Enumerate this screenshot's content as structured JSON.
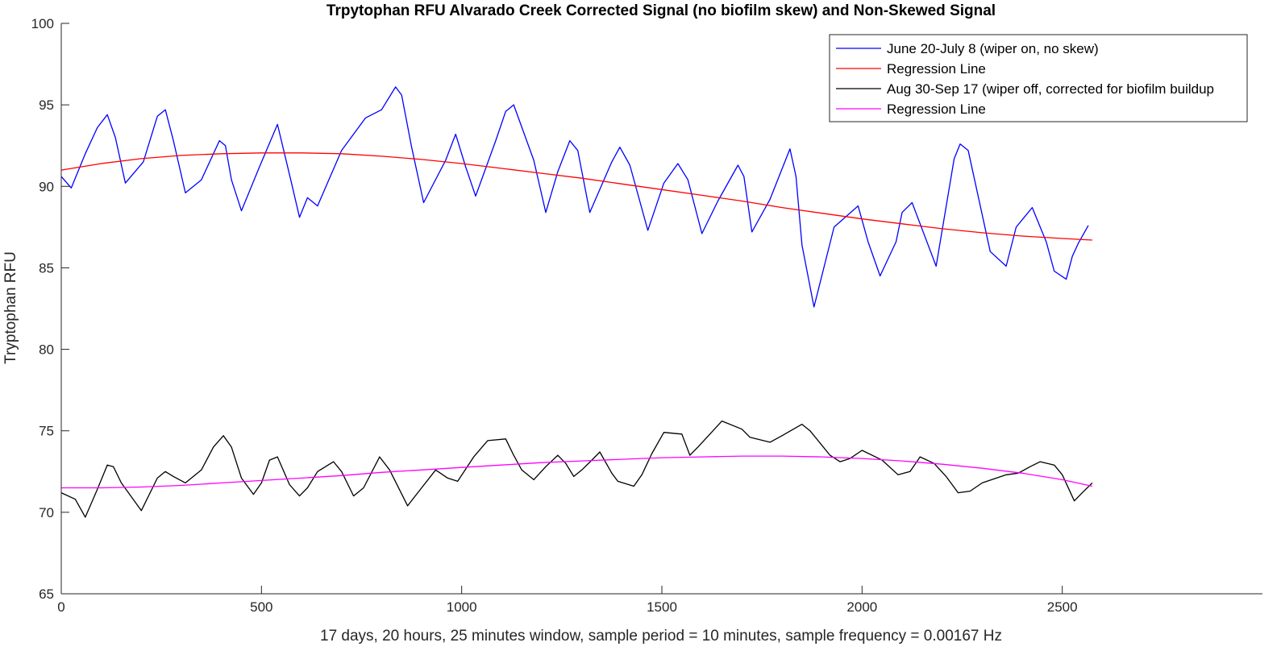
{
  "chart_data": {
    "type": "line",
    "title": "Trpytophan RFU Alvarado Creek Corrected Signal (no biofilm skew) and Non-Skewed Signal",
    "xlabel": "17 days, 20 hours, 25 minutes window, sample period = 10 minutes, sample frequency = 0.00167 Hz",
    "ylabel": "Tryptophan RFU",
    "xlim": [
      0,
      3000
    ],
    "ylim": [
      65,
      100
    ],
    "xticks": [
      0,
      500,
      1000,
      1500,
      2000,
      2500
    ],
    "yticks": [
      65,
      70,
      75,
      80,
      85,
      90,
      95,
      100
    ],
    "grid": false,
    "legend_position": "top-right",
    "series": [
      {
        "name": "June 20-July 8 (wiper on, no skew)",
        "color": "#0000ff",
        "x": [
          0,
          25,
          60,
          90,
          115,
          135,
          160,
          205,
          240,
          260,
          280,
          310,
          350,
          395,
          410,
          425,
          450,
          495,
          540,
          575,
          595,
          615,
          640,
          700,
          760,
          800,
          835,
          850,
          875,
          905,
          960,
          985,
          1010,
          1035,
          1085,
          1110,
          1120,
          1130,
          1180,
          1210,
          1240,
          1270,
          1290,
          1320,
          1375,
          1395,
          1420,
          1465,
          1505,
          1540,
          1565,
          1600,
          1640,
          1690,
          1705,
          1725,
          1770,
          1820,
          1835,
          1850,
          1880,
          1930,
          1990,
          2015,
          2045,
          2085,
          2100,
          2125,
          2185,
          2230,
          2245,
          2265,
          2320,
          2360,
          2385,
          2425,
          2460,
          2480,
          2510,
          2525,
          2540,
          2565
        ],
        "y": [
          90.6,
          89.9,
          92.0,
          93.6,
          94.4,
          93.0,
          90.2,
          91.5,
          94.3,
          94.7,
          92.8,
          89.6,
          90.4,
          92.8,
          92.5,
          90.4,
          88.5,
          91.2,
          93.8,
          90.2,
          88.1,
          89.3,
          88.8,
          92.2,
          94.2,
          94.7,
          96.1,
          95.6,
          92.4,
          89.0,
          91.6,
          93.2,
          91.2,
          89.4,
          92.8,
          94.6,
          94.8,
          95.0,
          91.6,
          88.4,
          90.9,
          92.8,
          92.2,
          88.4,
          91.5,
          92.4,
          91.3,
          87.3,
          90.2,
          91.4,
          90.4,
          87.1,
          89.1,
          91.3,
          90.6,
          87.2,
          89.2,
          92.3,
          90.6,
          86.4,
          82.6,
          87.5,
          88.8,
          86.6,
          84.5,
          86.6,
          88.4,
          89.0,
          85.1,
          91.7,
          92.6,
          92.2,
          86.0,
          85.1,
          87.5,
          88.7,
          86.6,
          84.8,
          84.3,
          85.7,
          86.5,
          87.6
        ]
      },
      {
        "name": "Regression Line",
        "color": "#ff0000",
        "x": [
          0,
          100,
          200,
          300,
          400,
          500,
          600,
          700,
          800,
          900,
          1000,
          1100,
          1200,
          1300,
          1400,
          1500,
          1600,
          1700,
          1800,
          1900,
          2000,
          2100,
          2200,
          2300,
          2400,
          2500,
          2575
        ],
        "y": [
          91.0,
          91.4,
          91.7,
          91.9,
          92.0,
          92.05,
          92.05,
          92.0,
          91.85,
          91.65,
          91.4,
          91.1,
          90.8,
          90.5,
          90.15,
          89.8,
          89.45,
          89.1,
          88.7,
          88.35,
          88.0,
          87.7,
          87.4,
          87.15,
          86.95,
          86.8,
          86.7
        ]
      },
      {
        "name": "Aug 30-Sep 17 (wiper off, corrected for biofilm buildup",
        "color": "#000000",
        "x": [
          0,
          35,
          60,
          90,
          115,
          130,
          150,
          200,
          240,
          260,
          280,
          310,
          350,
          380,
          405,
          425,
          450,
          480,
          500,
          520,
          540,
          570,
          595,
          615,
          640,
          680,
          700,
          730,
          755,
          795,
          820,
          865,
          900,
          935,
          965,
          990,
          1030,
          1065,
          1110,
          1130,
          1150,
          1180,
          1210,
          1240,
          1260,
          1280,
          1300,
          1325,
          1345,
          1375,
          1390,
          1430,
          1450,
          1475,
          1505,
          1550,
          1570,
          1590,
          1620,
          1650,
          1700,
          1720,
          1770,
          1800,
          1850,
          1870,
          1920,
          1945,
          1970,
          2000,
          2050,
          2090,
          2120,
          2145,
          2180,
          2210,
          2240,
          2270,
          2300,
          2360,
          2390,
          2420,
          2445,
          2480,
          2500,
          2530,
          2550,
          2575
        ],
        "y": [
          71.2,
          70.8,
          69.7,
          71.4,
          72.9,
          72.8,
          71.8,
          70.1,
          72.1,
          72.5,
          72.2,
          71.8,
          72.6,
          74.0,
          74.7,
          74.0,
          72.1,
          71.1,
          71.8,
          73.2,
          73.4,
          71.7,
          71.0,
          71.5,
          72.5,
          73.1,
          72.5,
          71.0,
          71.5,
          73.4,
          72.6,
          70.4,
          71.5,
          72.6,
          72.1,
          71.9,
          73.4,
          74.4,
          74.5,
          73.5,
          72.6,
          72.0,
          72.8,
          73.5,
          73.0,
          72.2,
          72.6,
          73.2,
          73.7,
          72.4,
          71.9,
          71.6,
          72.3,
          73.6,
          74.9,
          74.8,
          73.5,
          74.0,
          74.8,
          75.6,
          75.1,
          74.6,
          74.3,
          74.7,
          75.4,
          75.0,
          73.5,
          73.1,
          73.3,
          73.8,
          73.2,
          72.3,
          72.5,
          73.4,
          73.0,
          72.2,
          71.2,
          71.3,
          71.8,
          72.3,
          72.4,
          72.8,
          73.1,
          72.9,
          72.3,
          70.7,
          71.2,
          71.8
        ]
      },
      {
        "name": "Regression Line",
        "color": "#ff00ff",
        "x": [
          0,
          100,
          200,
          300,
          400,
          500,
          600,
          700,
          800,
          900,
          1000,
          1100,
          1200,
          1300,
          1400,
          1500,
          1600,
          1700,
          1800,
          1900,
          2000,
          2100,
          2200,
          2300,
          2400,
          2500,
          2575
        ],
        "y": [
          71.5,
          71.5,
          71.55,
          71.65,
          71.8,
          71.95,
          72.1,
          72.25,
          72.45,
          72.6,
          72.75,
          72.9,
          73.05,
          73.15,
          73.25,
          73.35,
          73.4,
          73.45,
          73.45,
          73.4,
          73.3,
          73.15,
          72.95,
          72.7,
          72.4,
          72.0,
          71.6
        ]
      }
    ]
  }
}
